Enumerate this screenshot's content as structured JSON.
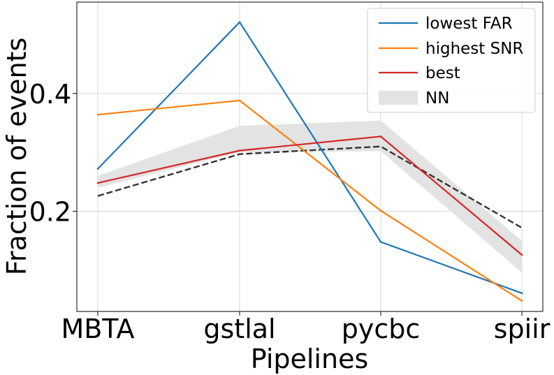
{
  "chart_data": {
    "type": "line",
    "xlabel": "Pipelines",
    "ylabel": "Fraction of events",
    "categories": [
      "MBTA",
      "gstlal",
      "pycbc",
      "spiir"
    ],
    "ylim": [
      0.03,
      0.555
    ],
    "yticks": [
      0.2,
      0.4
    ],
    "ytick_labels": [
      "0.2",
      "0.4"
    ],
    "grid": true,
    "legend_position": "top-right",
    "series": [
      {
        "name": "lowest FAR",
        "color": "#1f77b4",
        "values": [
          0.272,
          0.521,
          0.148,
          0.061
        ]
      },
      {
        "name": "highest SNR",
        "color": "#ff7f0e",
        "values": [
          0.364,
          0.388,
          0.201,
          0.048
        ]
      },
      {
        "name": "best",
        "color": "#d62728",
        "values": [
          0.248,
          0.303,
          0.327,
          0.126
        ]
      }
    ],
    "nn": {
      "name": "NN",
      "color": "#e3e3e3",
      "lower": [
        0.24,
        0.3,
        0.302,
        0.096
      ],
      "upper": [
        0.26,
        0.345,
        0.354,
        0.15
      ],
      "median": [
        0.226,
        0.297,
        0.31,
        0.172
      ],
      "median_color": "#333333"
    }
  }
}
